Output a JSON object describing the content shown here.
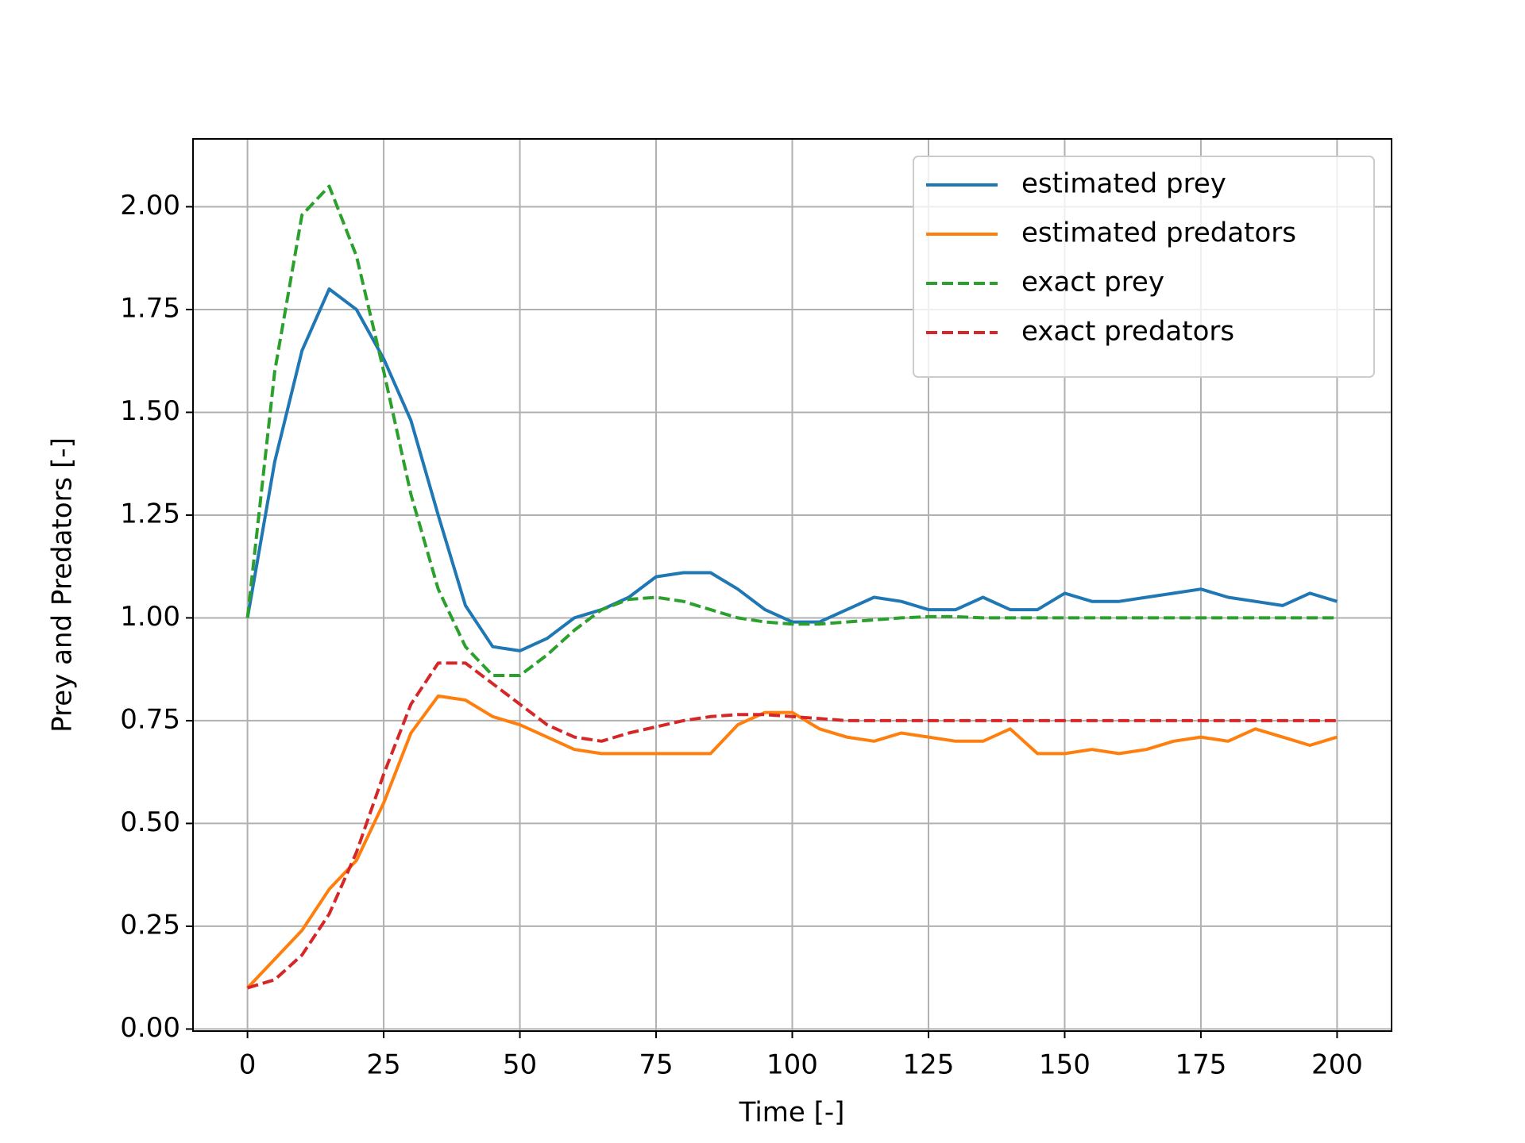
{
  "chart_data": {
    "type": "line",
    "xlabel": "Time [-]",
    "ylabel": "Prey and Predators [-]",
    "x": [
      0,
      5,
      10,
      15,
      20,
      25,
      30,
      35,
      40,
      45,
      50,
      55,
      60,
      65,
      70,
      75,
      80,
      85,
      90,
      95,
      100,
      105,
      110,
      115,
      120,
      125,
      130,
      135,
      140,
      145,
      150,
      155,
      160,
      165,
      170,
      175,
      180,
      185,
      190,
      195,
      200
    ],
    "series": [
      {
        "name": "estimated prey",
        "color": "#1f77b4",
        "linestyle": "solid",
        "values": [
          1.0,
          1.38,
          1.65,
          1.8,
          1.75,
          1.63,
          1.48,
          1.25,
          1.03,
          0.93,
          0.92,
          0.95,
          1.0,
          1.02,
          1.05,
          1.1,
          1.11,
          1.11,
          1.07,
          1.02,
          0.99,
          0.99,
          1.02,
          1.05,
          1.04,
          1.02,
          1.02,
          1.05,
          1.02,
          1.02,
          1.06,
          1.04,
          1.04,
          1.05,
          1.06,
          1.07,
          1.05,
          1.04,
          1.03,
          1.06,
          1.04
        ]
      },
      {
        "name": "estimated predators",
        "color": "#ff7f0e",
        "linestyle": "solid",
        "values": [
          0.1,
          0.17,
          0.24,
          0.34,
          0.41,
          0.55,
          0.72,
          0.81,
          0.8,
          0.76,
          0.74,
          0.71,
          0.68,
          0.67,
          0.67,
          0.67,
          0.67,
          0.67,
          0.74,
          0.77,
          0.77,
          0.73,
          0.71,
          0.7,
          0.72,
          0.71,
          0.7,
          0.7,
          0.73,
          0.67,
          0.67,
          0.68,
          0.67,
          0.68,
          0.7,
          0.71,
          0.7,
          0.73,
          0.71,
          0.69,
          0.71
        ]
      },
      {
        "name": "exact prey",
        "color": "#2ca02c",
        "linestyle": "dashed",
        "values": [
          1.0,
          1.6,
          1.98,
          2.05,
          1.88,
          1.6,
          1.3,
          1.07,
          0.93,
          0.86,
          0.86,
          0.91,
          0.97,
          1.02,
          1.045,
          1.05,
          1.04,
          1.02,
          1.0,
          0.99,
          0.985,
          0.985,
          0.99,
          0.995,
          1.0,
          1.003,
          1.003,
          1.0,
          1.0,
          1.0,
          1.0,
          1.0,
          1.0,
          1.0,
          1.0,
          1.0,
          1.0,
          1.0,
          1.0,
          1.0,
          1.0
        ]
      },
      {
        "name": "exact predators",
        "color": "#d62728",
        "linestyle": "dashed",
        "values": [
          0.1,
          0.12,
          0.18,
          0.28,
          0.43,
          0.62,
          0.79,
          0.89,
          0.89,
          0.84,
          0.79,
          0.74,
          0.71,
          0.7,
          0.72,
          0.735,
          0.75,
          0.76,
          0.765,
          0.765,
          0.76,
          0.755,
          0.75,
          0.75,
          0.75,
          0.75,
          0.75,
          0.75,
          0.75,
          0.75,
          0.75,
          0.75,
          0.75,
          0.75,
          0.75,
          0.75,
          0.75,
          0.75,
          0.75,
          0.75,
          0.75
        ]
      }
    ],
    "xlim": [
      -10,
      210
    ],
    "ylim": [
      -0.005,
      2.165
    ],
    "xticks": [
      0,
      25,
      50,
      75,
      100,
      125,
      150,
      175,
      200
    ],
    "yticks": [
      {
        "value": 0,
        "label": "0.00"
      },
      {
        "value": 0.25,
        "label": "0.25"
      },
      {
        "value": 0.5,
        "label": "0.50"
      },
      {
        "value": 0.75,
        "label": "0.75"
      },
      {
        "value": 1,
        "label": "1.00"
      },
      {
        "value": 1.25,
        "label": "1.25"
      },
      {
        "value": 1.5,
        "label": "1.50"
      },
      {
        "value": 1.75,
        "label": "1.75"
      },
      {
        "value": 2,
        "label": "2.00"
      }
    ],
    "grid": true,
    "legend": "upper right"
  }
}
